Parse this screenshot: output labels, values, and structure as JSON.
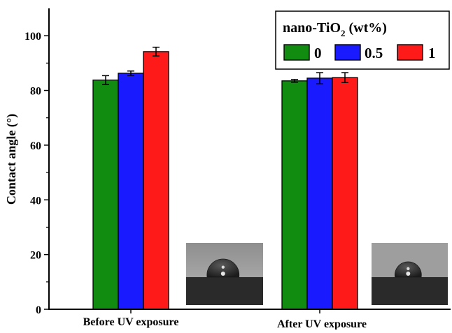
{
  "chart_data": {
    "type": "bar",
    "ylabel": "Contact angle (°)",
    "xlabel": "",
    "ylim": [
      0,
      110
    ],
    "yticks": [
      0,
      20,
      40,
      60,
      80,
      100
    ],
    "grid": false,
    "legend_position": "top-right",
    "legend_title_main": "nano-TiO",
    "legend_title_sub": "2",
    "legend_title_tail": " (wt%)",
    "categories": [
      "Before UV exposure",
      "After UV exposure"
    ],
    "series": [
      {
        "name": "0",
        "color": "#118c11",
        "values": [
          83.8,
          83.5
        ],
        "errors": [
          1.6,
          0.5
        ]
      },
      {
        "name": "0.5",
        "color": "#1a1aff",
        "values": [
          86.3,
          84.5
        ],
        "errors": [
          0.8,
          2.0
        ]
      },
      {
        "name": "1",
        "color": "#ff1a1a",
        "values": [
          94.2,
          84.7
        ],
        "errors": [
          1.6,
          1.8
        ]
      }
    ],
    "insets": [
      {
        "name": "droplet-inset-before",
        "category": "Before UV exposure",
        "droplet": "tall"
      },
      {
        "name": "droplet-inset-after",
        "category": "After UV exposure",
        "droplet": "short"
      }
    ]
  }
}
